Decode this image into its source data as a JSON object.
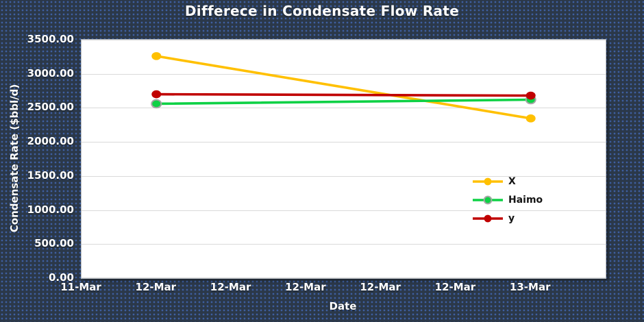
{
  "chart_data": {
    "type": "line",
    "title": "Differece in Condensate Flow Rate",
    "xlabel": "Date",
    "ylabel": "Condensate Rate ($bbl/d)",
    "ylim": [
      0,
      3500
    ],
    "y_tick_labels": [
      "0.00",
      "500.00",
      "1000.00",
      "1500.00",
      "2000.00",
      "2500.00",
      "3000.00",
      "3500.00"
    ],
    "x_tick_labels": [
      "11-Mar",
      "12-Mar",
      "12-Mar",
      "12-Mar",
      "12-Mar",
      "12-Mar",
      "13-Mar"
    ],
    "x_axis_slots": 7,
    "grid": "horizontal",
    "legend_position": "inside-right",
    "plot_background": "#ffffff",
    "page_background": "#2b3849",
    "gridline_color": "#d9d9d9",
    "series": [
      {
        "name": "X",
        "color": "#FFC000",
        "points": [
          {
            "x_tick": 1,
            "value": 3260
          },
          {
            "x_tick": 6,
            "value": 2345
          }
        ]
      },
      {
        "name": "Haimo",
        "color": "#0ED145",
        "marker_outline": "#A6A6A6",
        "points": [
          {
            "x_tick": 1,
            "value": 2560
          },
          {
            "x_tick": 6,
            "value": 2620
          }
        ]
      },
      {
        "name": "y",
        "color": "#C00000",
        "points": [
          {
            "x_tick": 1,
            "value": 2700
          },
          {
            "x_tick": 6,
            "value": 2680
          }
        ]
      }
    ]
  }
}
